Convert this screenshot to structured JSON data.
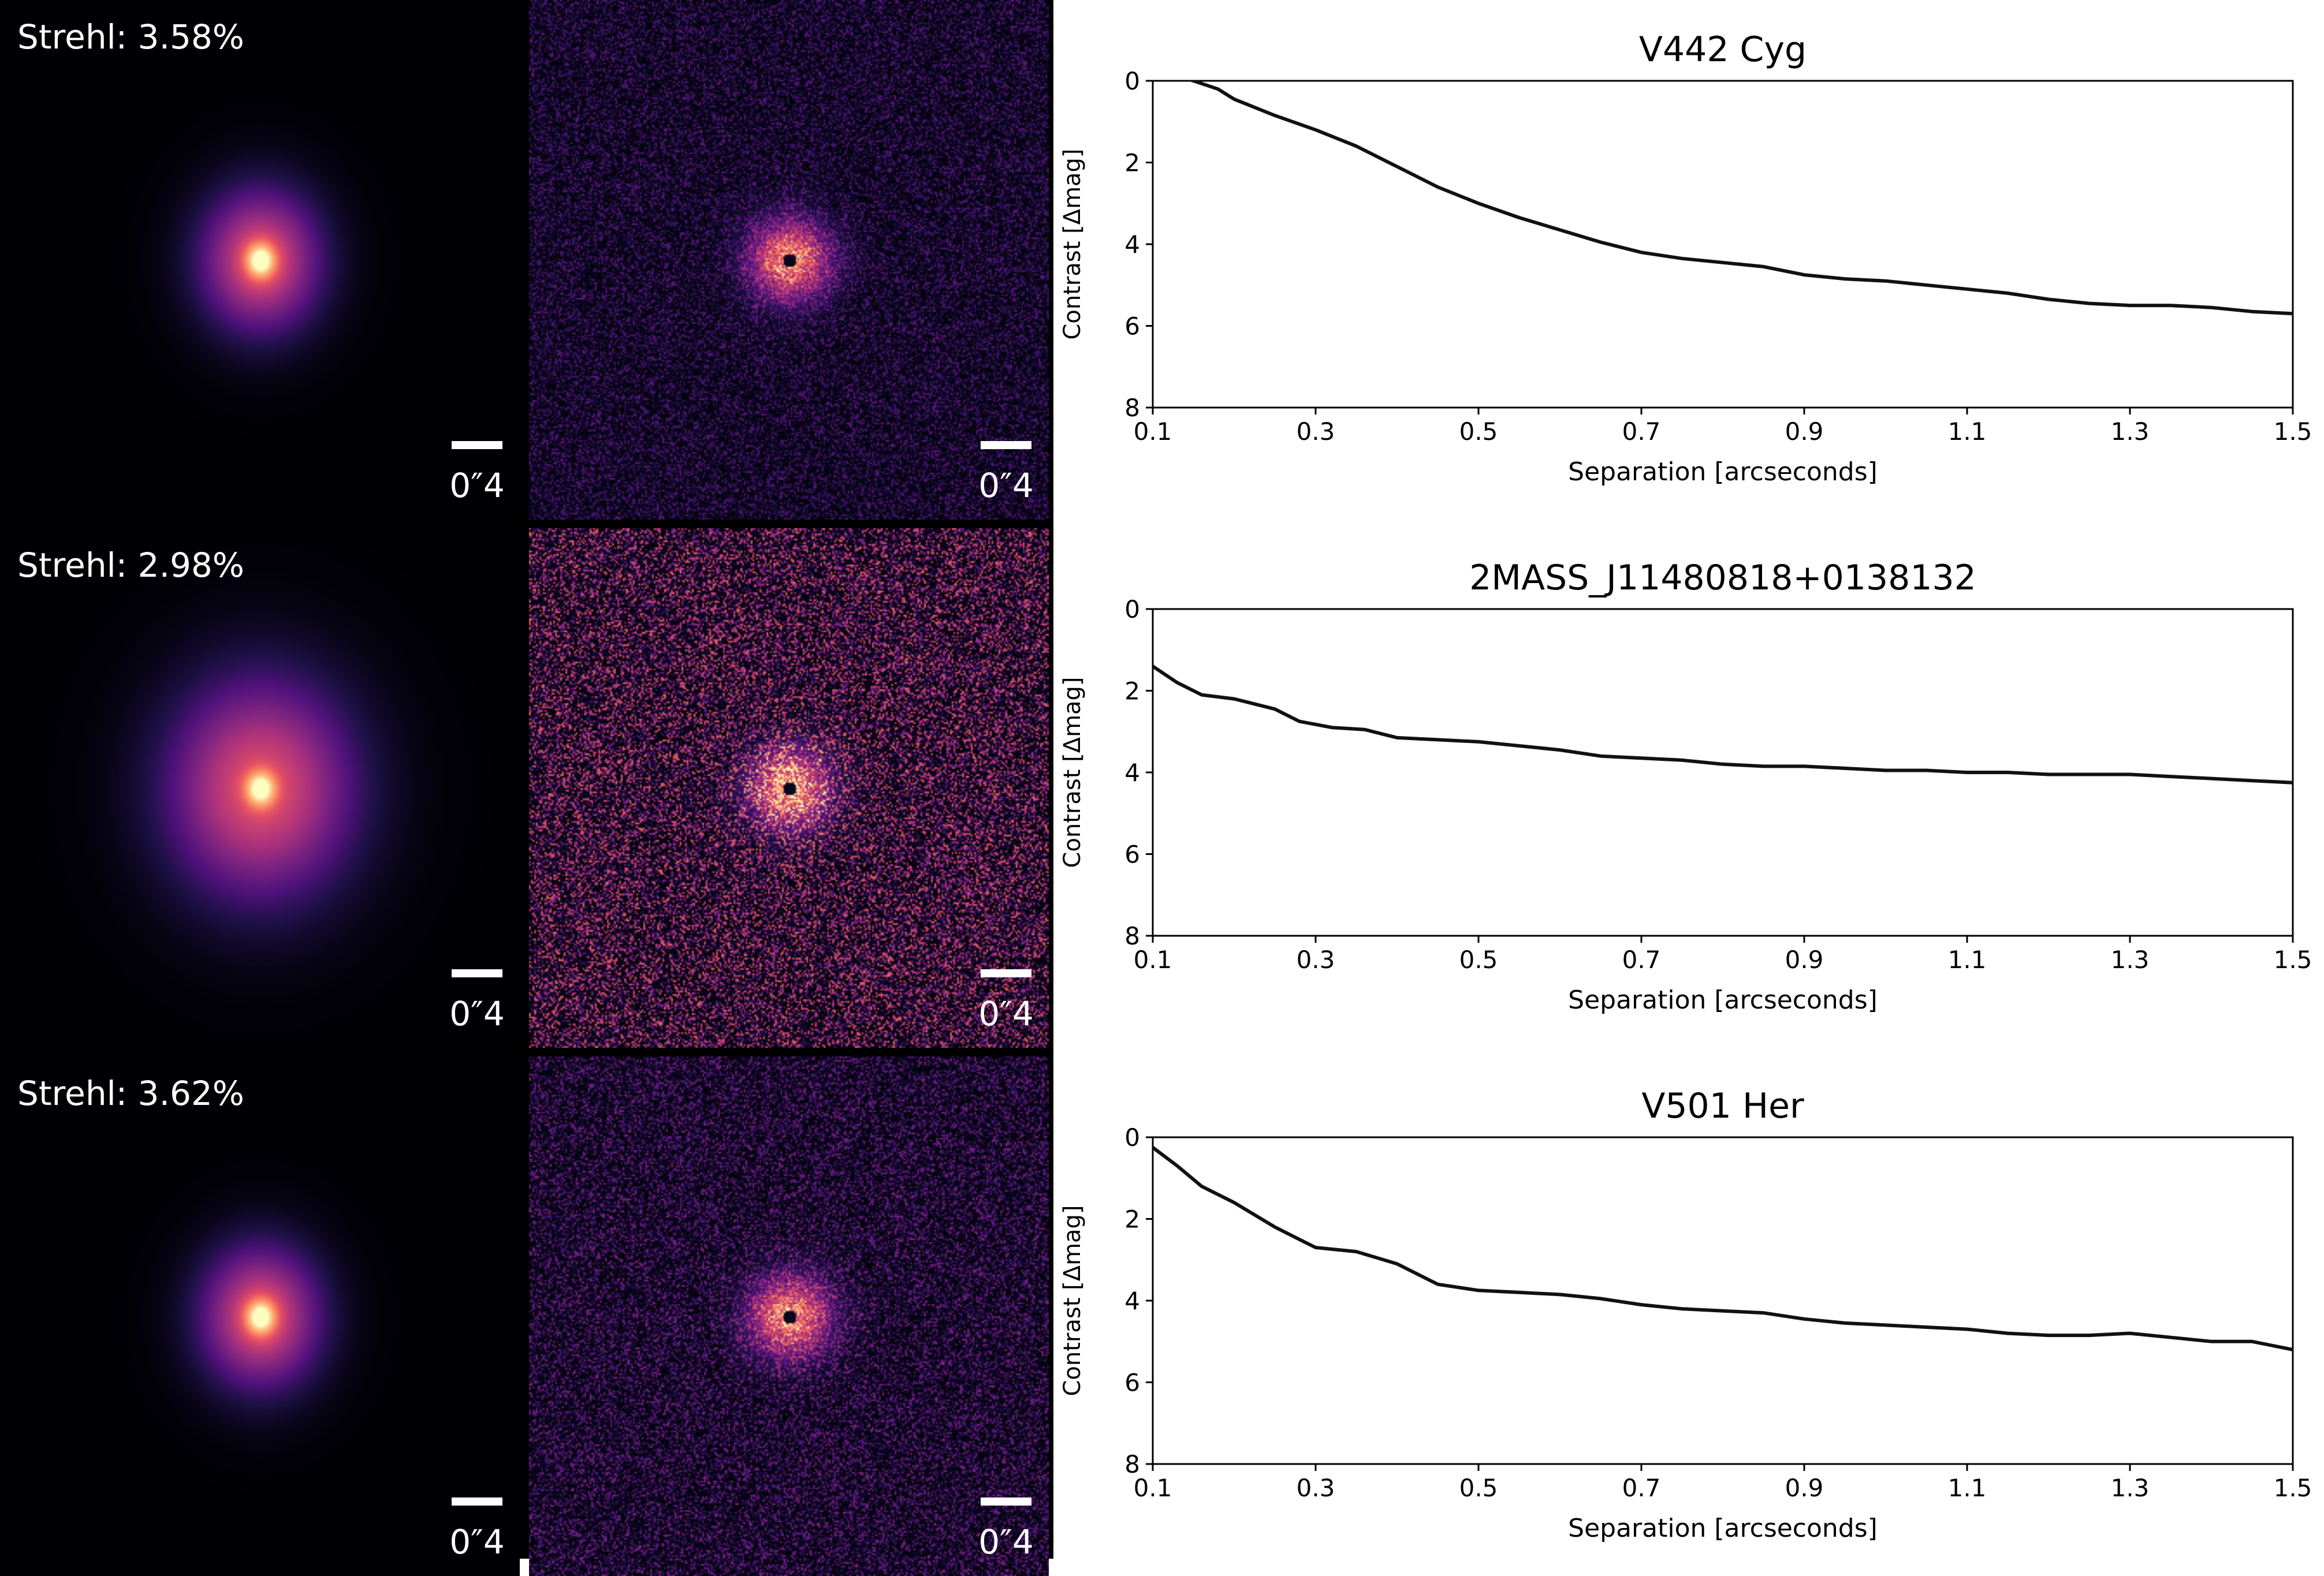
{
  "rows": [
    {
      "strehl": "Strehl: 3.58%",
      "psf_scalebar": "0″4",
      "residual_scalebar": "0″4",
      "residual_noise_level": 0.22,
      "chart_data": {
        "type": "line",
        "title": "V442 Cyg",
        "xlabel": "Separation [arcseconds]",
        "ylabel": "Contrast [Δmag]",
        "xlim": [
          0.1,
          1.5
        ],
        "ylim": [
          8,
          0
        ],
        "xticks": [
          "0.1",
          "0.3",
          "0.5",
          "0.7",
          "0.9",
          "1.1",
          "1.3",
          "1.5"
        ],
        "yticks": [
          "0",
          "2",
          "4",
          "6",
          "8"
        ],
        "grid": false,
        "x": [
          0.1,
          0.15,
          0.18,
          0.2,
          0.25,
          0.3,
          0.35,
          0.4,
          0.45,
          0.5,
          0.55,
          0.6,
          0.65,
          0.7,
          0.75,
          0.8,
          0.85,
          0.9,
          0.95,
          1.0,
          1.05,
          1.1,
          1.15,
          1.2,
          1.25,
          1.3,
          1.35,
          1.4,
          1.45,
          1.5
        ],
        "y": [
          -0.3,
          0.0,
          0.2,
          0.45,
          0.85,
          1.2,
          1.6,
          2.1,
          2.6,
          3.0,
          3.35,
          3.65,
          3.95,
          4.2,
          4.35,
          4.45,
          4.55,
          4.75,
          4.85,
          4.9,
          5.0,
          5.1,
          5.2,
          5.35,
          5.45,
          5.5,
          5.5,
          5.55,
          5.65,
          5.7
        ]
      }
    },
    {
      "strehl": "Strehl: 2.98%",
      "psf_scalebar": "0″4",
      "residual_scalebar": "0″4",
      "residual_noise_level": 0.5,
      "chart_data": {
        "type": "line",
        "title": "2MASS_J11480818+0138132",
        "xlabel": "Separation [arcseconds]",
        "ylabel": "Contrast [Δmag]",
        "xlim": [
          0.1,
          1.5
        ],
        "ylim": [
          8,
          0
        ],
        "xticks": [
          "0.1",
          "0.3",
          "0.5",
          "0.7",
          "0.9",
          "1.1",
          "1.3",
          "1.5"
        ],
        "yticks": [
          "0",
          "2",
          "4",
          "6",
          "8"
        ],
        "grid": false,
        "x": [
          0.1,
          0.13,
          0.16,
          0.2,
          0.25,
          0.28,
          0.32,
          0.36,
          0.4,
          0.45,
          0.5,
          0.55,
          0.6,
          0.65,
          0.7,
          0.75,
          0.8,
          0.85,
          0.9,
          0.95,
          1.0,
          1.05,
          1.1,
          1.15,
          1.2,
          1.25,
          1.3,
          1.35,
          1.4,
          1.45,
          1.5
        ],
        "y": [
          1.4,
          1.8,
          2.1,
          2.2,
          2.45,
          2.75,
          2.9,
          2.95,
          3.15,
          3.2,
          3.25,
          3.35,
          3.45,
          3.6,
          3.65,
          3.7,
          3.8,
          3.85,
          3.85,
          3.9,
          3.95,
          3.95,
          4.0,
          4.0,
          4.05,
          4.05,
          4.05,
          4.1,
          4.15,
          4.2,
          4.25
        ]
      }
    },
    {
      "strehl": "Strehl: 3.62%",
      "psf_scalebar": "0″4",
      "residual_scalebar": "0″4",
      "residual_noise_level": 0.28,
      "chart_data": {
        "type": "line",
        "title": "V501 Her",
        "xlabel": "Separation [arcseconds]",
        "ylabel": "Contrast [Δmag]",
        "xlim": [
          0.1,
          1.5
        ],
        "ylim": [
          8,
          0
        ],
        "xticks": [
          "0.1",
          "0.3",
          "0.5",
          "0.7",
          "0.9",
          "1.1",
          "1.3",
          "1.5"
        ],
        "yticks": [
          "0",
          "2",
          "4",
          "6",
          "8"
        ],
        "grid": false,
        "x": [
          0.1,
          0.13,
          0.16,
          0.2,
          0.25,
          0.28,
          0.3,
          0.35,
          0.4,
          0.45,
          0.5,
          0.55,
          0.6,
          0.65,
          0.7,
          0.75,
          0.8,
          0.85,
          0.9,
          0.95,
          1.0,
          1.05,
          1.1,
          1.15,
          1.2,
          1.25,
          1.3,
          1.35,
          1.4,
          1.45,
          1.5
        ],
        "y": [
          0.25,
          0.7,
          1.2,
          1.6,
          2.2,
          2.5,
          2.7,
          2.8,
          3.1,
          3.6,
          3.75,
          3.8,
          3.85,
          3.95,
          4.1,
          4.2,
          4.25,
          4.3,
          4.45,
          4.55,
          4.6,
          4.65,
          4.7,
          4.8,
          4.85,
          4.85,
          4.8,
          4.9,
          5.0,
          5.0,
          5.2
        ]
      }
    }
  ]
}
